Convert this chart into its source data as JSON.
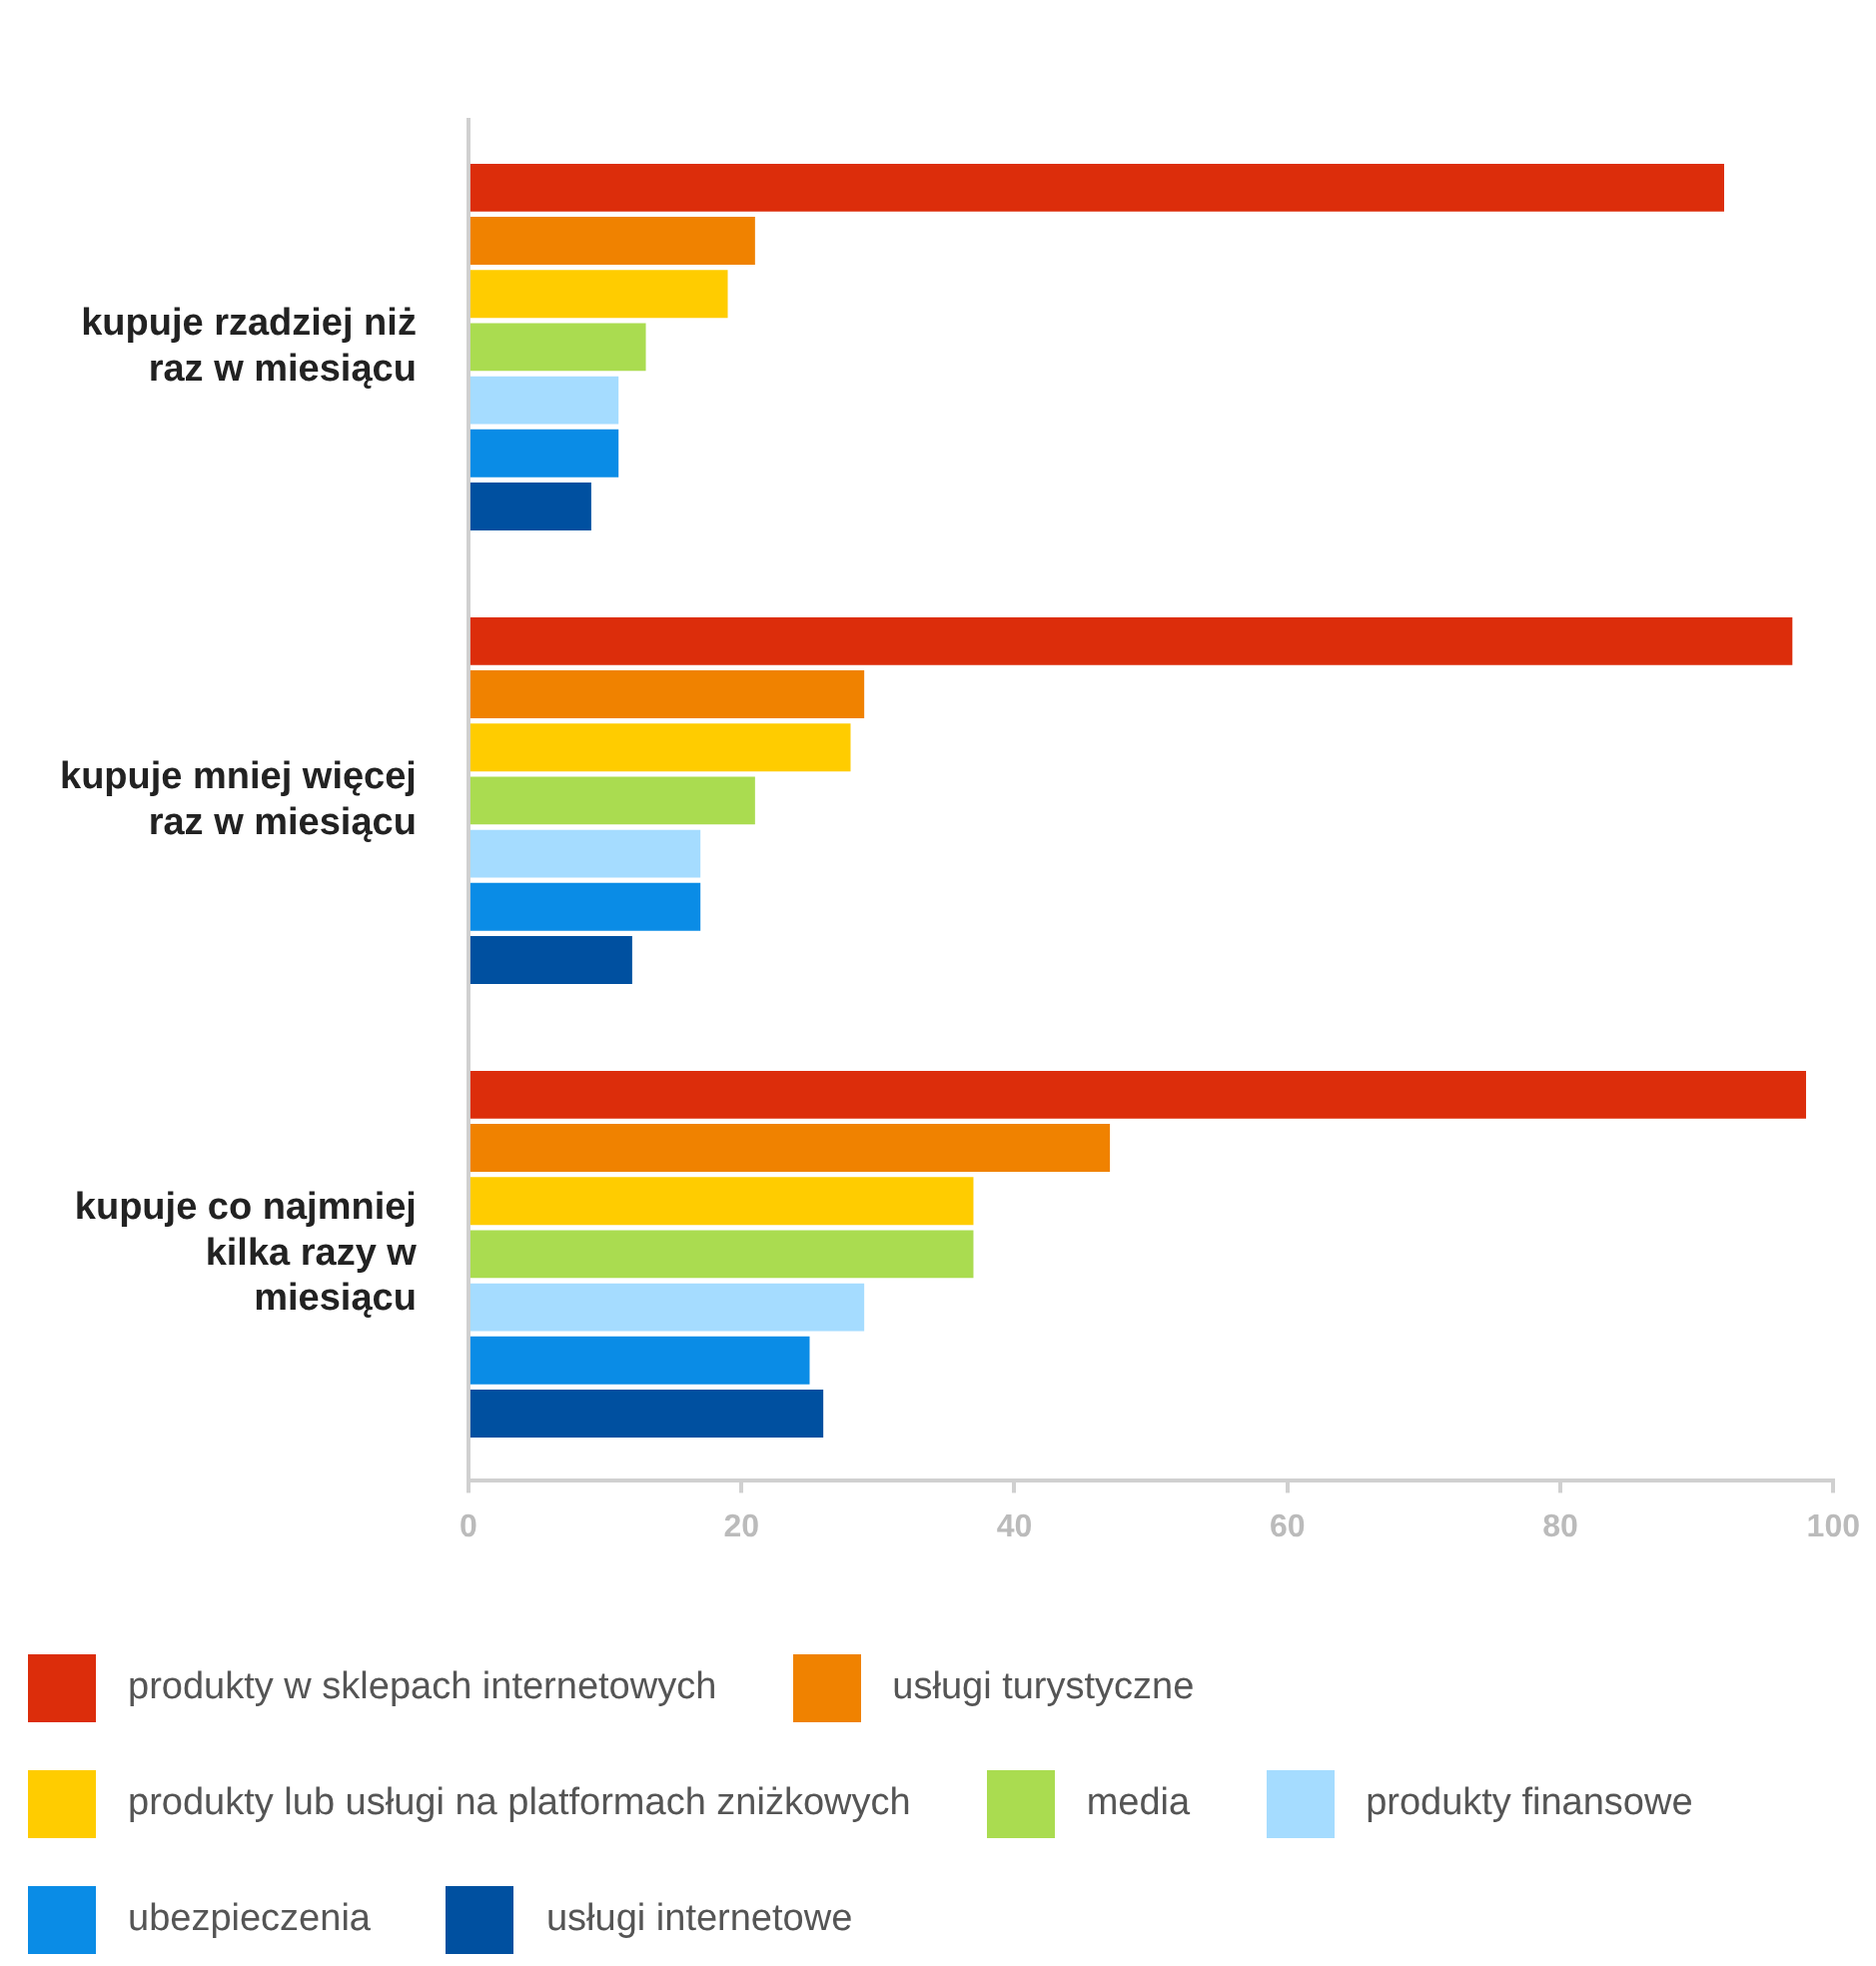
{
  "chart_data": {
    "type": "bar",
    "orientation": "horizontal",
    "categories": [
      "kupuje rzadziej niż raz w miesiącu",
      "kupuje mniej więcej raz w miesiącu",
      "kupuje co najmniej kilka razy w miesiącu"
    ],
    "series": [
      {
        "name": "produkty w sklepach internetowych",
        "color": "#dc2d0b",
        "values": [
          92,
          97,
          98
        ]
      },
      {
        "name": "usługi turystyczne",
        "color": "#f08200",
        "values": [
          21,
          29,
          47
        ]
      },
      {
        "name": "produkty lub usługi na platformach zniżkowych",
        "color": "#ffcc00",
        "values": [
          19,
          28,
          37
        ]
      },
      {
        "name": "media",
        "color": "#aadc50",
        "values": [
          13,
          21,
          37
        ]
      },
      {
        "name": "produkty finansowe",
        "color": "#a5dcff",
        "values": [
          11,
          17,
          29
        ]
      },
      {
        "name": "ubezpieczenia",
        "color": "#0a8ce6",
        "values": [
          11,
          17,
          25
        ]
      },
      {
        "name": "usługi internetowe",
        "color": "#0050a0",
        "values": [
          9,
          12,
          26
        ]
      }
    ],
    "xlim": [
      0,
      100
    ],
    "xticks": [
      0,
      20,
      40,
      60,
      80,
      100
    ],
    "grid": false,
    "legend": "bottom"
  }
}
